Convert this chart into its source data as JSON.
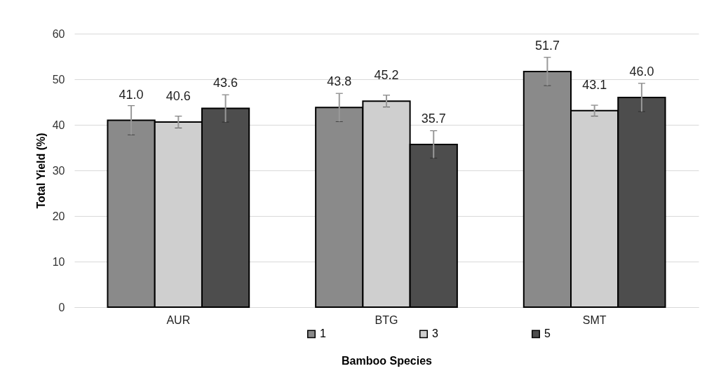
{
  "chart_data": {
    "type": "bar",
    "xlabel": "Bamboo Species",
    "ylabel": "Total Yield (%)",
    "categories": [
      "AUR",
      "BTG",
      "SMT"
    ],
    "series": [
      {
        "name": "1",
        "color": "#8a8a8a",
        "values": [
          41.0,
          43.8,
          51.7
        ],
        "errors": [
          3.2,
          3.1,
          3.1
        ],
        "value_labels": [
          "41.0",
          "43.8",
          "51.7"
        ]
      },
      {
        "name": "3",
        "color": "#cfcfcf",
        "values": [
          40.6,
          45.2,
          43.1
        ],
        "errors": [
          1.3,
          1.3,
          1.2
        ],
        "value_labels": [
          "40.6",
          "45.2",
          "43.1"
        ]
      },
      {
        "name": "5",
        "color": "#4d4d4d",
        "values": [
          43.6,
          35.7,
          46.0
        ],
        "errors": [
          3.0,
          3.0,
          3.1
        ],
        "value_labels": [
          "43.6",
          "35.7",
          "46.0"
        ]
      }
    ],
    "ylim": [
      0,
      60
    ],
    "yticks": [
      0,
      10,
      20,
      30,
      40,
      50,
      60
    ],
    "grid": "y",
    "legend": "bottom"
  }
}
